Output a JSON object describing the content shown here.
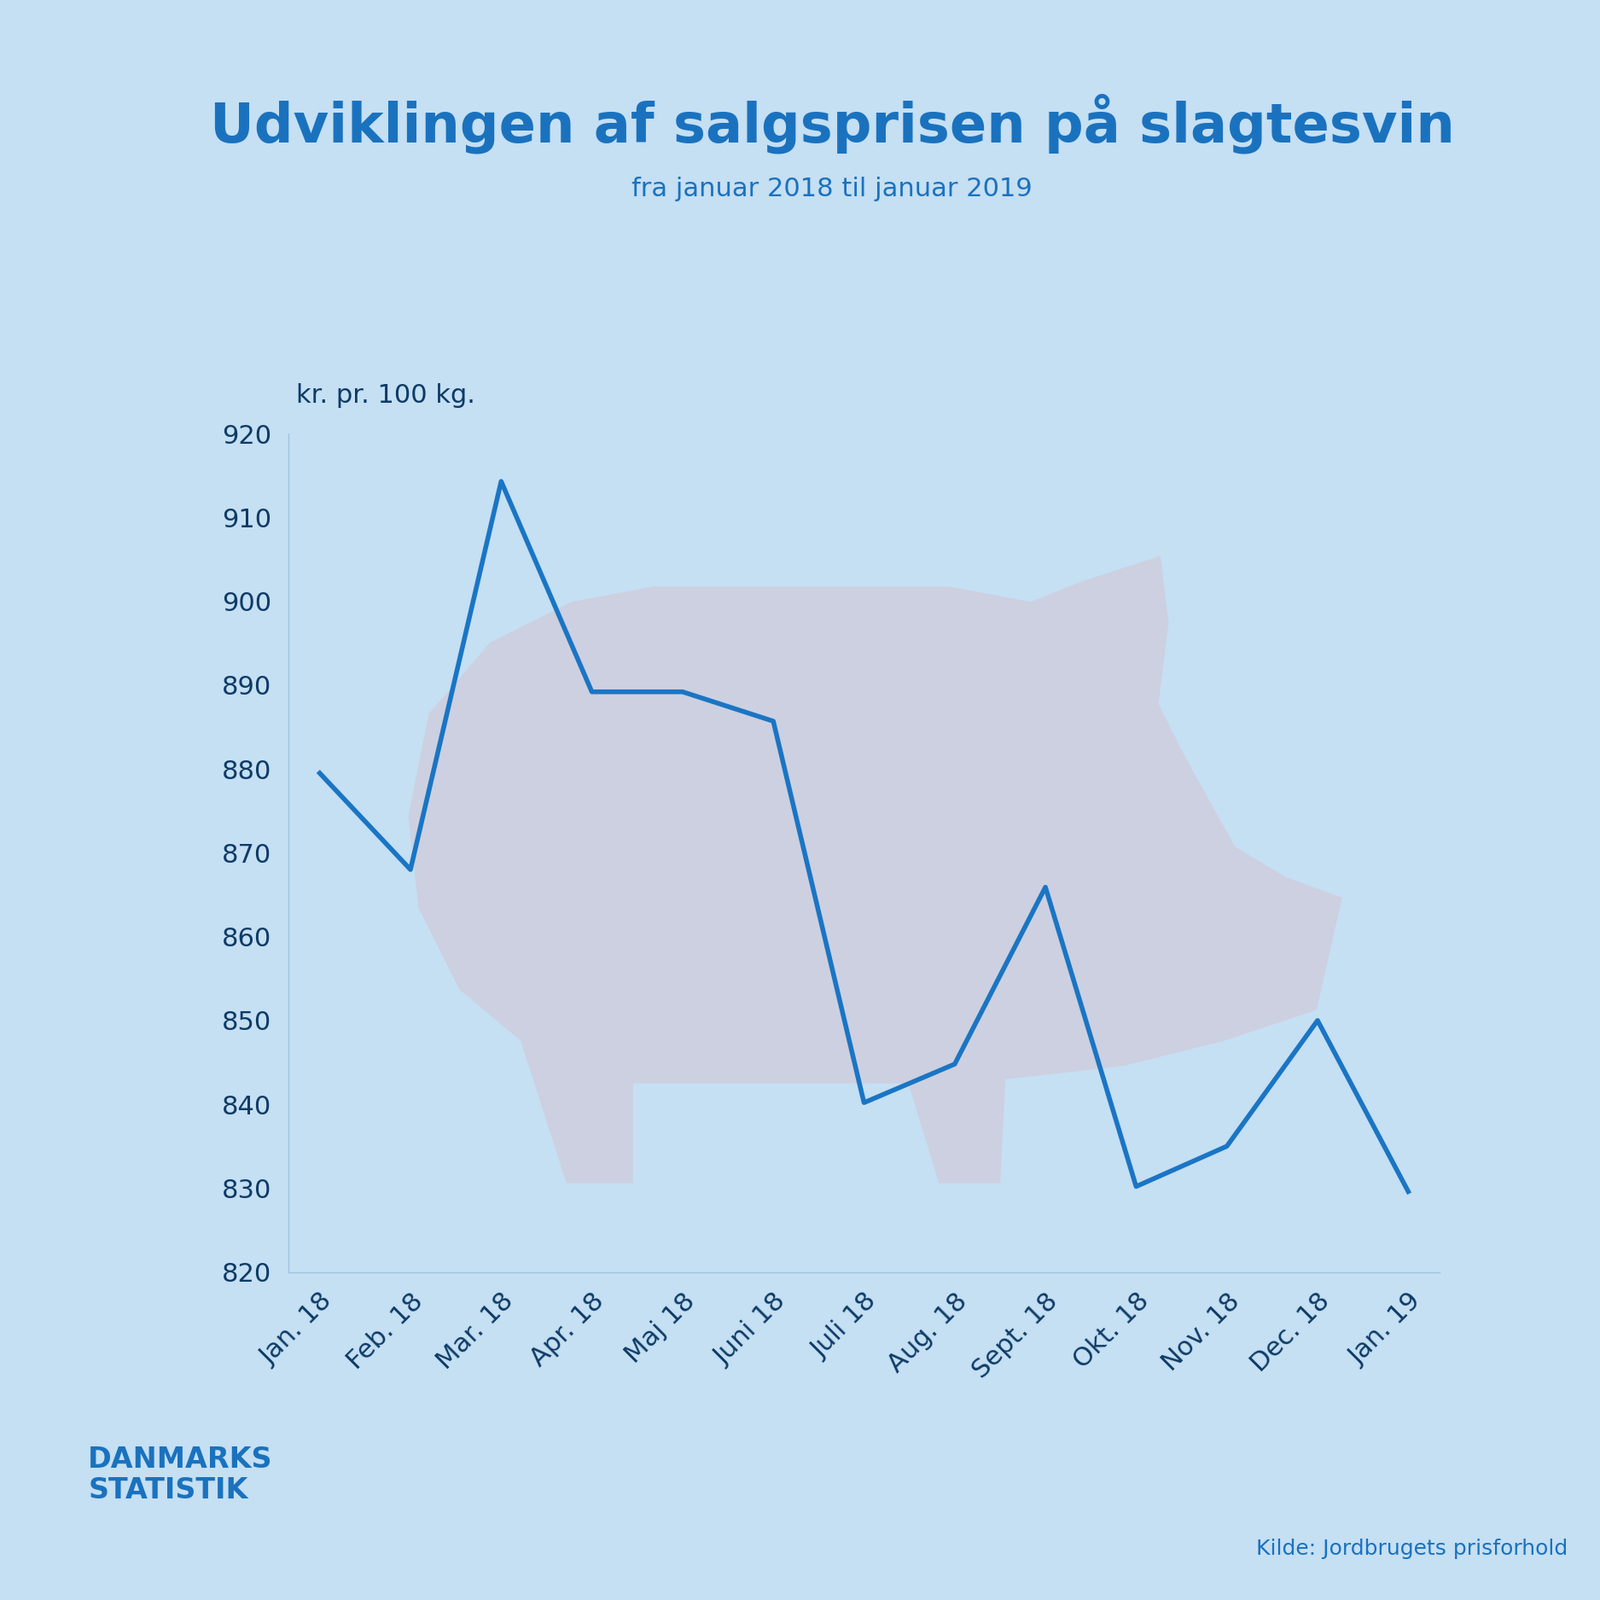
{
  "chart_data": {
    "type": "line",
    "title": "Udviklingen af salgsprisen på slagtesvin",
    "subtitle": "fra januar 2018 til januar 2019",
    "y_label": "kr. pr. 100 kg.",
    "categories": [
      "Jan. 18",
      "Feb. 18",
      "Mar. 18",
      "Apr. 18",
      "Maj 18",
      "Juni 18",
      "Juli 18",
      "Aug. 18",
      "Sept. 18",
      "Okt. 18",
      "Nov. 18",
      "Dec. 18",
      "Jan. 19"
    ],
    "values": [
      879.5,
      868,
      914.3,
      889.2,
      889.2,
      885.7,
      840.2,
      844.8,
      865.9,
      830.2,
      835,
      850,
      829.6
    ],
    "color": "#1a75c4",
    "ylim": [
      820,
      920
    ],
    "yticks": [
      820,
      830,
      840,
      850,
      860,
      870,
      880,
      890,
      900,
      910,
      920
    ],
    "grid": false,
    "logo": [
      "DANMARKS",
      "STATISTIK"
    ],
    "source": "Kilde: Jordbrugets prisforhold"
  }
}
